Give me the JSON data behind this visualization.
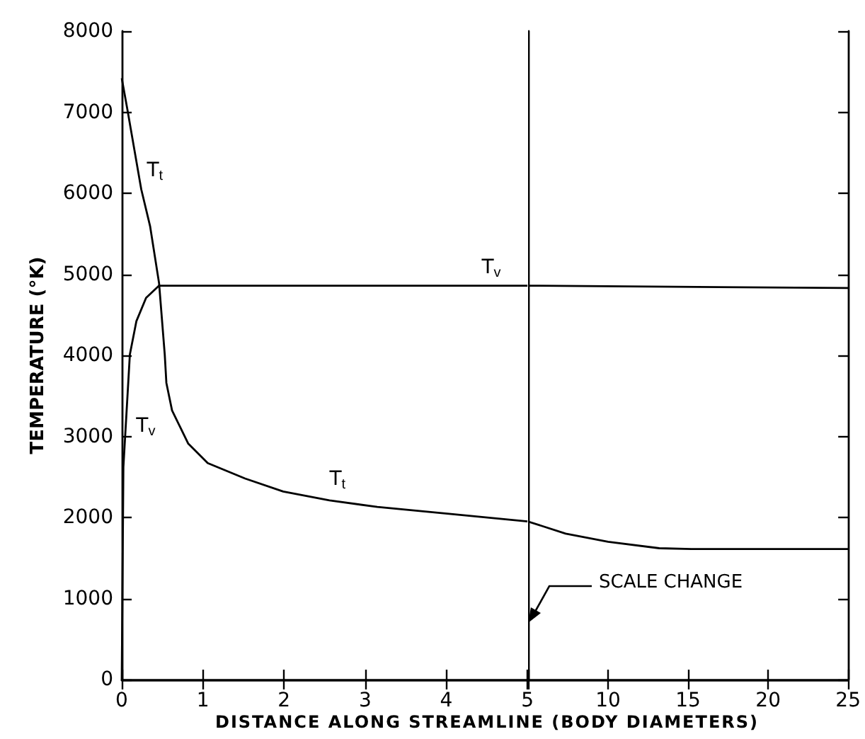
{
  "chart_data": [
    {
      "type": "line",
      "ylabel": "TEMPERATURE (°K)",
      "xlabel": "DISTANCE ALONG STREAMLINE (BODY DIAMETERS)",
      "xlim": [
        0,
        5
      ],
      "xticks": [
        0,
        1,
        2,
        3,
        4,
        5
      ],
      "ylim": [
        0,
        8000
      ],
      "yticks": [
        0,
        1000,
        2000,
        3000,
        4000,
        5000,
        6000,
        7000,
        8000
      ],
      "series": [
        {
          "name": "T$_{t}$",
          "color": "#000000",
          "x": [
            0,
            0.07,
            0.24,
            0.35,
            0.46,
            0.53,
            0.55,
            0.62,
            0.82,
            1.06,
            1.52,
            1.99,
            2.56,
            3.15,
            4.08,
            5
          ],
          "values": [
            7420,
            7030,
            6050,
            5590,
            4890,
            4010,
            3660,
            3320,
            2910,
            2670,
            2480,
            2320,
            2210,
            2130,
            2040,
            1950
          ]
        },
        {
          "name": "T$_{v}$",
          "color": "#000000",
          "x": [
            0,
            0.02,
            0.1,
            0.18,
            0.3,
            0.46,
            1,
            2,
            3,
            4,
            5
          ],
          "values": [
            0,
            2620,
            4010,
            4420,
            4710,
            4860,
            4860,
            4860,
            4860,
            4860,
            4860
          ]
        }
      ]
    },
    {
      "type": "line",
      "xlim": [
        5,
        25
      ],
      "xticks": [
        {
          "value": 5,
          "label": null
        },
        10,
        15,
        20,
        25
      ],
      "ylim": [
        0,
        8000
      ],
      "yticks": [
        0,
        1000,
        2000,
        3000,
        4000,
        5000,
        6000,
        7000,
        8000
      ],
      "tick_labels": "x",
      "series": [
        {
          "color": "#000000",
          "x": [
            5,
            7.35,
            10,
            13.2,
            15.2,
            25
          ],
          "values": [
            1950,
            1800,
            1700,
            1620,
            1610,
            1610
          ]
        },
        {
          "color": "#000000",
          "x": [
            5,
            25
          ],
          "values": [
            4860,
            4830
          ]
        }
      ],
      "annotations": [
        "SCALE CHANGE"
      ]
    }
  ]
}
